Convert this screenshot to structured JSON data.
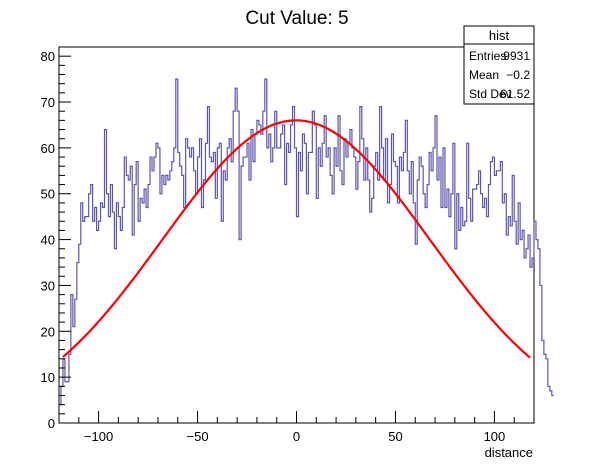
{
  "chart_data": {
    "type": "histogram",
    "title": "Cut Value: 5",
    "xlabel": "distance",
    "ylabel": "",
    "xlim": [
      -120,
      120
    ],
    "ylim": [
      0,
      82
    ],
    "x_ticks": [
      -100,
      -50,
      0,
      50,
      100
    ],
    "x_tick_labels": [
      "−100",
      "−50",
      "0",
      "50",
      "100"
    ],
    "y_ticks": [
      0,
      10,
      20,
      30,
      40,
      50,
      60,
      70,
      80
    ],
    "y_tick_labels": [
      "0",
      "10",
      "20",
      "30",
      "40",
      "50",
      "60",
      "70",
      "80"
    ],
    "grid": false,
    "bin_width": 1,
    "hist_color": "#5c55b3",
    "fit_color": "#ff0000",
    "series": [
      {
        "kind": "histogram",
        "values": [
          4,
          8,
          14,
          9,
          9,
          15,
          28,
          21,
          27,
          35,
          39,
          48,
          44,
          45,
          45,
          50,
          52,
          44,
          47,
          42,
          44,
          48,
          47,
          64,
          50,
          45,
          52,
          46,
          38,
          48,
          45,
          42,
          47,
          58,
          54,
          53,
          56,
          41,
          52,
          57,
          44,
          49,
          48,
          51,
          47,
          52,
          58,
          55,
          58,
          61,
          60,
          50,
          54,
          52,
          54,
          53,
          55,
          57,
          60,
          75,
          59,
          56,
          54,
          47,
          62,
          60,
          58,
          60,
          55,
          50,
          58,
          62,
          47,
          53,
          61,
          69,
          58,
          57,
          59,
          49,
          60,
          61,
          44,
          55,
          53,
          60,
          62,
          57,
          68,
          73,
          68,
          40,
          56,
          58,
          58,
          61,
          53,
          64,
          57,
          63,
          66,
          65,
          63,
          68,
          75,
          60,
          63,
          57,
          60,
          68,
          60,
          60,
          63,
          65,
          52,
          61,
          59,
          65,
          69,
          60,
          45,
          59,
          55,
          63,
          61,
          50,
          59,
          59,
          68,
          65,
          49,
          60,
          56,
          61,
          67,
          58,
          60,
          54,
          50,
          60,
          56,
          67,
          55,
          52,
          62,
          58,
          61,
          64,
          60,
          58,
          51,
          57,
          69,
          62,
          53,
          60,
          53,
          46,
          49,
          56,
          59,
          53,
          69,
          60,
          53,
          62,
          48,
          52,
          63,
          57,
          56,
          48,
          58,
          55,
          59,
          66,
          55,
          50,
          57,
          48,
          39,
          53,
          58,
          56,
          50,
          47,
          52,
          59,
          55,
          60,
          67,
          53,
          58,
          47,
          60,
          47,
          51,
          45,
          50,
          61,
          38,
          50,
          42,
          47,
          43,
          44,
          61,
          49,
          44,
          51,
          51,
          52,
          55,
          50,
          47,
          49,
          45,
          52,
          57,
          58,
          54,
          55,
          55,
          57,
          48,
          50,
          41,
          45,
          43,
          54,
          44,
          39,
          48,
          40,
          42,
          36,
          38,
          41,
          34,
          36,
          44,
          40,
          38,
          30,
          18,
          15,
          14,
          8,
          7,
          6
        ]
      },
      {
        "kind": "fit",
        "name": "",
        "model": "gaussian",
        "amplitude": 66,
        "mean": -0.2,
        "sigma": 67.5
      }
    ],
    "stats_box": {
      "title": "hist",
      "rows": [
        {
          "label": "Entries",
          "value": "9931"
        },
        {
          "label": "Mean",
          "value": "−0.2"
        },
        {
          "label": "Std Dev",
          "value": "61.52"
        }
      ]
    }
  }
}
